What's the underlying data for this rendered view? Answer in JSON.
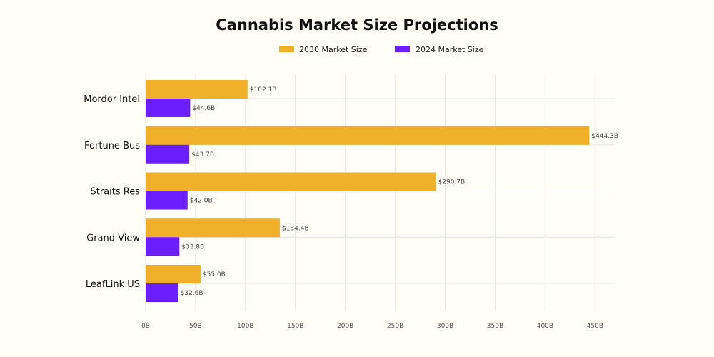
{
  "chart_data": {
    "type": "bar",
    "orientation": "horizontal",
    "title": "Cannabis Market Size Projections",
    "categories": [
      "Mordor Intel",
      "Fortune Bus",
      "Straits Res",
      "Grand View",
      "LeafLink US"
    ],
    "series": [
      {
        "name": "2030 Market Size",
        "color": "#f0b02a",
        "values": [
          102.1,
          444.3,
          290.7,
          134.4,
          55.0
        ],
        "labels": [
          "$102.1B",
          "$444.3B",
          "$290.7B",
          "$134.4B",
          "$55.0B"
        ]
      },
      {
        "name": "2024 Market Size",
        "color": "#6a1ffc",
        "values": [
          44.6,
          43.7,
          42.0,
          33.8,
          32.6
        ],
        "labels": [
          "$44.6B",
          "$43.7B",
          "$42.0B",
          "$33.8B",
          "$32.6B"
        ]
      }
    ],
    "xlim": [
      0,
      470
    ],
    "xticks": [
      0,
      50,
      100,
      150,
      200,
      250,
      300,
      350,
      400,
      450
    ],
    "xtick_labels": [
      "0B",
      "50B",
      "100B",
      "150B",
      "200B",
      "250B",
      "300B",
      "350B",
      "400B",
      "450B"
    ],
    "grid": true,
    "legend_position": "top-center"
  }
}
